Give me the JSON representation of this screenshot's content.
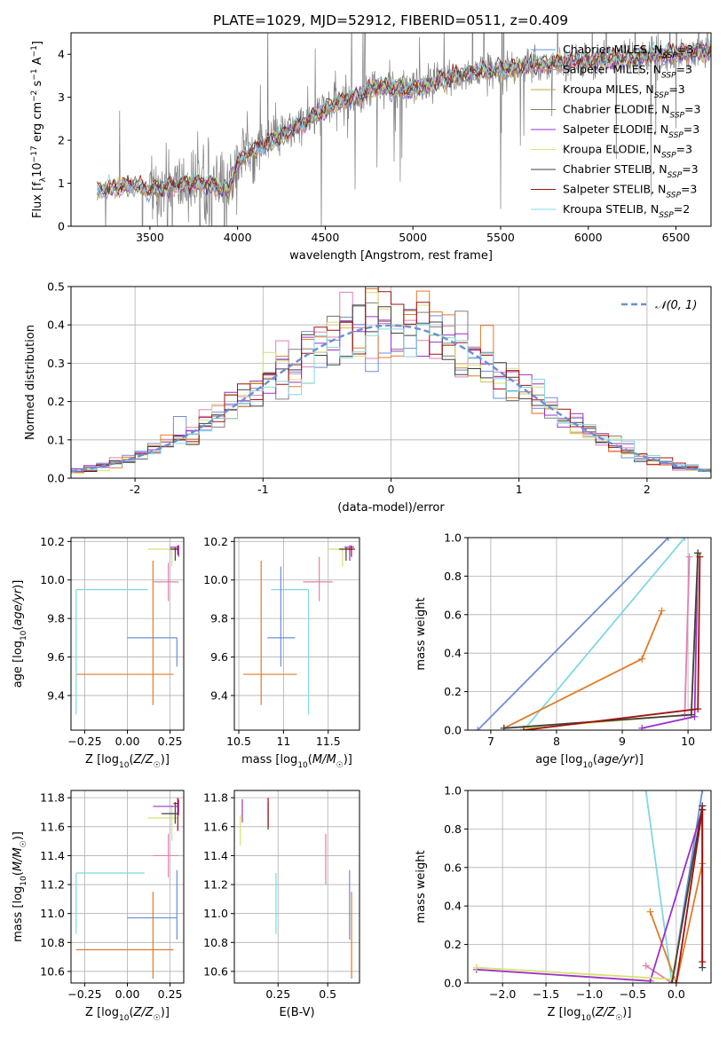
{
  "figure": {
    "title": "PLATE=1029, MJD=52912, FIBERID=0511, z=0.409"
  },
  "colors": {
    "blue": "#6a8fd8",
    "orange": "#e07b2a",
    "khaki": "#c8a04a",
    "gray": "#808080",
    "purple": "#9b30c8",
    "yellow": "#d8e070",
    "dark": "#404040",
    "red": "#a01010",
    "cyan": "#80d8e0",
    "pink": "#e080b0",
    "olive": "#6a8a50",
    "grid": "#b0b0b0"
  },
  "chart_data": [
    {
      "id": "spectrum",
      "type": "line",
      "xlabel": "wavelength [Angstrom, rest frame]",
      "ylabel": "Flux [f_λ10^-17 erg cm^-2 s^-1 A^-1]",
      "xlim": [
        3050,
        6700
      ],
      "ylim": [
        0,
        4.5
      ],
      "xticks": [
        3500,
        4000,
        4500,
        5000,
        5500,
        6000,
        6500
      ],
      "yticks": [
        0,
        1,
        2,
        3,
        4
      ],
      "grid": false,
      "legend_position": "top-right",
      "data_x_range": [
        3200,
        6700
      ],
      "model_continuum": {
        "x": [
          3200,
          3300,
          3400,
          3500,
          3650,
          3800,
          3950,
          4000,
          4100,
          4250,
          4400,
          4550,
          4700,
          4800,
          4900,
          5000,
          5200,
          5400,
          5600,
          5800,
          6000,
          6200,
          6400,
          6600,
          6700
        ],
        "y": [
          0.85,
          0.9,
          0.95,
          0.85,
          0.95,
          1.0,
          0.85,
          1.5,
          1.8,
          2.1,
          2.45,
          2.85,
          3.05,
          3.25,
          3.2,
          3.15,
          3.45,
          3.6,
          3.7,
          3.8,
          3.85,
          3.9,
          4.0,
          4.05,
          4.1
        ]
      },
      "legend": [
        {
          "label": "Chabrier MILES, N",
          "sub": "SSP",
          "suffix": "=3",
          "color": "blue"
        },
        {
          "label": "Salpeter MILES, N",
          "sub": "SSP",
          "suffix": "=3",
          "color": "pink"
        },
        {
          "label": "Kroupa MILES, N",
          "sub": "SSP",
          "suffix": "=3",
          "color": "khaki"
        },
        {
          "label": "Chabrier ELODIE, N",
          "sub": "SSP",
          "suffix": "=3",
          "color": "olive"
        },
        {
          "label": "Salpeter ELODIE, N",
          "sub": "SSP",
          "suffix": "=3",
          "color": "purple"
        },
        {
          "label": "Kroupa ELODIE, N",
          "sub": "SSP",
          "suffix": "=3",
          "color": "yellow"
        },
        {
          "label": "Chabrier STELIB, N",
          "sub": "SSP",
          "suffix": "=3",
          "color": "dark"
        },
        {
          "label": "Salpeter STELIB, N",
          "sub": "SSP",
          "suffix": "=3",
          "color": "red"
        },
        {
          "label": "Kroupa STELIB, N",
          "sub": "SSP",
          "suffix": "=2",
          "color": "cyan"
        }
      ]
    },
    {
      "id": "residuals",
      "type": "line",
      "xlabel": "(data-model)/error",
      "ylabel": "Normed distribution",
      "xlim": [
        -2.5,
        2.5
      ],
      "ylim": [
        0,
        0.5
      ],
      "xticks": [
        -2,
        -1,
        0,
        1,
        2
      ],
      "yticks": [
        0.0,
        0.1,
        0.2,
        0.3,
        0.4,
        0.5
      ],
      "grid": true,
      "legend_position": "top-right",
      "bin_width": 0.1,
      "reference_curve": {
        "label": "𝒩(0, 1)",
        "mean": 0,
        "sigma": 1,
        "color": "blue"
      },
      "histogram_series_colors": [
        "blue",
        "pink",
        "orange",
        "gray",
        "purple",
        "yellow",
        "dark",
        "red",
        "cyan"
      ]
    },
    {
      "id": "age-vs-Z",
      "type": "scatter",
      "xlabel": "Z [log10(Z/Z☉)]",
      "ylabel": "age  [log10(age/yr)]",
      "xlim": [
        -0.33,
        0.33
      ],
      "ylim": [
        9.22,
        10.22
      ],
      "xticks": [
        -0.25,
        0.0,
        0.25
      ],
      "xtick_labels": [
        "−0.25",
        "0.00",
        "0.25"
      ],
      "yticks": [
        9.4,
        9.6,
        9.8,
        10.0,
        10.2
      ],
      "grid": true,
      "errorbars": [
        {
          "color": "orange",
          "x": 0.15,
          "y": 9.51,
          "x_lo": -0.3,
          "x_hi": 0.27,
          "y_lo": 9.35,
          "y_hi": 10.1
        },
        {
          "color": "cyan",
          "x": -0.3,
          "y": 9.95,
          "x_lo": -0.3,
          "x_hi": 0.12,
          "y_lo": 9.3,
          "y_hi": 9.95
        },
        {
          "color": "blue",
          "x": 0.29,
          "y": 9.7,
          "x_lo": 0.0,
          "x_hi": 0.29,
          "y_lo": 9.55,
          "y_hi": 9.7
        },
        {
          "color": "pink",
          "x": 0.24,
          "y": 9.99,
          "x_lo": 0.15,
          "x_hi": 0.3,
          "y_lo": 9.89,
          "y_hi": 10.09
        },
        {
          "color": "yellow",
          "x": 0.26,
          "y": 10.16,
          "x_lo": 0.12,
          "x_hi": 0.3,
          "y_lo": 10.07,
          "y_hi": 10.17
        },
        {
          "color": "dark",
          "x": 0.28,
          "y": 10.16,
          "x_lo": 0.25,
          "x_hi": 0.3,
          "y_lo": 10.1,
          "y_hi": 10.17
        },
        {
          "color": "purple",
          "x": 0.3,
          "y": 10.17,
          "x_lo": 0.25,
          "x_hi": 0.3,
          "y_lo": 10.12,
          "y_hi": 10.18
        },
        {
          "color": "red",
          "x": 0.295,
          "y": 10.16,
          "x_lo": 0.27,
          "x_hi": 0.3,
          "y_lo": 10.13,
          "y_hi": 10.18
        }
      ]
    },
    {
      "id": "age-vs-mass",
      "type": "scatter",
      "xlabel": "mass [log10(M/M☉)]",
      "ylabel": "",
      "xlim": [
        10.45,
        11.85
      ],
      "ylim": [
        9.22,
        10.22
      ],
      "xticks": [
        10.5,
        11.0,
        11.5
      ],
      "yticks": [
        9.4,
        9.6,
        9.8,
        10.0,
        10.2
      ],
      "grid": true,
      "errorbars": [
        {
          "color": "orange",
          "x": 10.75,
          "y": 9.51,
          "x_lo": 10.55,
          "x_hi": 11.15,
          "y_lo": 9.35,
          "y_hi": 10.1
        },
        {
          "color": "cyan",
          "x": 11.28,
          "y": 9.95,
          "x_lo": 10.86,
          "x_hi": 11.28,
          "y_lo": 9.3,
          "y_hi": 9.95
        },
        {
          "color": "blue",
          "x": 10.97,
          "y": 9.7,
          "x_lo": 10.82,
          "x_hi": 11.13,
          "y_lo": 9.55,
          "y_hi": 10.07
        },
        {
          "color": "pink",
          "x": 11.4,
          "y": 9.99,
          "x_lo": 11.22,
          "x_hi": 11.55,
          "y_lo": 9.89,
          "y_hi": 10.12
        },
        {
          "color": "yellow",
          "x": 11.66,
          "y": 10.16,
          "x_lo": 11.5,
          "x_hi": 11.75,
          "y_lo": 10.07,
          "y_hi": 10.17
        },
        {
          "color": "dark",
          "x": 11.7,
          "y": 10.16,
          "x_lo": 11.62,
          "x_hi": 11.77,
          "y_lo": 10.1,
          "y_hi": 10.17
        },
        {
          "color": "purple",
          "x": 11.74,
          "y": 10.17,
          "x_lo": 11.68,
          "x_hi": 11.79,
          "y_lo": 10.1,
          "y_hi": 10.18
        },
        {
          "color": "red",
          "x": 11.76,
          "y": 10.16,
          "x_lo": 11.7,
          "x_hi": 11.8,
          "y_lo": 10.12,
          "y_hi": 10.18
        }
      ]
    },
    {
      "id": "weight-vs-age",
      "type": "line",
      "xlabel": "age  [log10(age/yr)]",
      "ylabel": "mass weight",
      "xlim": [
        6.65,
        10.35
      ],
      "ylim": [
        0,
        1.0
      ],
      "xticks": [
        7,
        8,
        9,
        10
      ],
      "yticks": [
        0.0,
        0.2,
        0.4,
        0.6,
        0.8,
        1.0
      ],
      "grid": true,
      "series": [
        {
          "color": "blue",
          "x": [
            6.8,
            9.7
          ],
          "y": [
            0.0,
            1.0
          ]
        },
        {
          "color": "cyan",
          "x": [
            7.5,
            9.95
          ],
          "y": [
            0.0,
            1.0
          ]
        },
        {
          "color": "orange",
          "x": [
            7.2,
            9.3,
            9.6
          ],
          "y": [
            0.01,
            0.37,
            0.62
          ]
        },
        {
          "color": "pink",
          "x": [
            9.95,
            10.02
          ],
          "y": [
            0.08,
            0.9
          ]
        },
        {
          "color": "purple",
          "x": [
            9.3,
            10.1,
            10.15
          ],
          "y": [
            0.01,
            0.07,
            0.92
          ]
        },
        {
          "color": "yellow",
          "x": [
            7.5,
            10.05,
            10.15
          ],
          "y": [
            0.01,
            0.08,
            0.91
          ]
        },
        {
          "color": "dark",
          "x": [
            7.2,
            10.05,
            10.15
          ],
          "y": [
            0.01,
            0.08,
            0.92
          ]
        },
        {
          "color": "red",
          "x": [
            7.5,
            10.15,
            10.18
          ],
          "y": [
            0.0,
            0.11,
            0.9
          ]
        }
      ]
    },
    {
      "id": "mass-vs-Z",
      "type": "scatter",
      "xlabel": "Z [log10(Z/Z☉)]",
      "ylabel": "mass [log10(M/M☉)]",
      "xlim": [
        -0.33,
        0.33
      ],
      "ylim": [
        10.52,
        11.85
      ],
      "xticks": [
        -0.25,
        0.0,
        0.25
      ],
      "xtick_labels": [
        "−0.25",
        "0.00",
        "0.25"
      ],
      "yticks": [
        10.6,
        10.8,
        11.0,
        11.2,
        11.4,
        11.6,
        11.8
      ],
      "grid": true,
      "errorbars": [
        {
          "color": "orange",
          "x": 0.15,
          "y": 10.75,
          "x_lo": -0.3,
          "x_hi": 0.27,
          "y_lo": 10.55,
          "y_hi": 11.15
        },
        {
          "color": "cyan",
          "x": -0.3,
          "y": 11.28,
          "x_lo": -0.3,
          "x_hi": 0.1,
          "y_lo": 10.86,
          "y_hi": 11.28
        },
        {
          "color": "blue",
          "x": 0.29,
          "y": 10.97,
          "x_lo": 0.0,
          "x_hi": 0.29,
          "y_lo": 10.82,
          "y_hi": 11.3
        },
        {
          "color": "pink",
          "x": 0.24,
          "y": 11.4,
          "x_lo": 0.15,
          "x_hi": 0.3,
          "y_lo": 11.25,
          "y_hi": 11.55
        },
        {
          "color": "yellow",
          "x": 0.26,
          "y": 11.66,
          "x_lo": 0.12,
          "x_hi": 0.3,
          "y_lo": 11.5,
          "y_hi": 11.75
        },
        {
          "color": "dark",
          "x": 0.28,
          "y": 11.69,
          "x_lo": 0.2,
          "x_hi": 0.3,
          "y_lo": 11.62,
          "y_hi": 11.77
        },
        {
          "color": "purple",
          "x": 0.3,
          "y": 11.74,
          "x_lo": 0.15,
          "x_hi": 0.3,
          "y_lo": 11.68,
          "y_hi": 11.79
        },
        {
          "color": "red",
          "x": 0.295,
          "y": 11.76,
          "x_lo": 0.27,
          "x_hi": 0.3,
          "y_lo": 11.57,
          "y_hi": 11.8
        }
      ]
    },
    {
      "id": "mass-vs-ebv",
      "type": "scatter",
      "xlabel": "E(B-V)",
      "ylabel": "",
      "xlim": [
        0.03,
        0.66
      ],
      "ylim": [
        10.52,
        11.85
      ],
      "xticks": [
        0.25,
        0.5
      ],
      "yticks": [
        10.6,
        10.8,
        11.0,
        11.2,
        11.4,
        11.6,
        11.8
      ],
      "grid": true,
      "errorbars": [
        {
          "color": "orange",
          "x": 0.62,
          "y": 10.75,
          "x_lo": 0.62,
          "x_hi": 0.62,
          "y_lo": 10.55,
          "y_hi": 11.15
        },
        {
          "color": "cyan",
          "x": 0.24,
          "y": 11.08,
          "x_lo": 0.24,
          "x_hi": 0.24,
          "y_lo": 10.86,
          "y_hi": 11.28
        },
        {
          "color": "blue",
          "x": 0.61,
          "y": 11.1,
          "x_lo": 0.61,
          "x_hi": 0.61,
          "y_lo": 10.82,
          "y_hi": 11.3
        },
        {
          "color": "pink",
          "x": 0.49,
          "y": 11.4,
          "x_lo": 0.49,
          "x_hi": 0.49,
          "y_lo": 11.2,
          "y_hi": 11.55
        },
        {
          "color": "yellow",
          "x": 0.06,
          "y": 11.58,
          "x_lo": 0.06,
          "x_hi": 0.06,
          "y_lo": 11.47,
          "y_hi": 11.68
        },
        {
          "color": "dark",
          "x": 0.2,
          "y": 11.7,
          "x_lo": 0.2,
          "x_hi": 0.2,
          "y_lo": 11.58,
          "y_hi": 11.77
        },
        {
          "color": "purple",
          "x": 0.07,
          "y": 11.74,
          "x_lo": 0.07,
          "x_hi": 0.07,
          "y_lo": 11.63,
          "y_hi": 11.79
        },
        {
          "color": "red",
          "x": 0.2,
          "y": 11.72,
          "x_lo": 0.2,
          "x_hi": 0.2,
          "y_lo": 11.6,
          "y_hi": 11.8
        }
      ]
    },
    {
      "id": "weight-vs-Z",
      "type": "line",
      "xlabel": "Z [log10(Z/Z☉)]",
      "ylabel": "mass weight",
      "xlim": [
        -2.4,
        0.4
      ],
      "ylim": [
        0,
        1.0
      ],
      "xticks": [
        -2.0,
        -1.5,
        -1.0,
        -0.5,
        0.0
      ],
      "xtick_labels": [
        "−2.0",
        "−1.5",
        "−1.0",
        "−0.5",
        "0.0"
      ],
      "yticks": [
        0.0,
        0.2,
        0.4,
        0.6,
        0.8,
        1.0
      ],
      "grid": true,
      "series": [
        {
          "color": "cyan",
          "x": [
            -0.35,
            -0.05
          ],
          "y": [
            1.0,
            0.0
          ]
        },
        {
          "color": "blue",
          "x": [
            -0.05,
            0.3
          ],
          "y": [
            0.0,
            1.0
          ]
        },
        {
          "color": "orange",
          "x": [
            -0.3,
            0.0,
            0.3,
            0.3
          ],
          "y": [
            0.37,
            0.0,
            0.62,
            0.9
          ]
        },
        {
          "color": "pink",
          "x": [
            -0.35,
            -0.05,
            0.3
          ],
          "y": [
            0.09,
            0.0,
            0.9
          ]
        },
        {
          "color": "purple",
          "x": [
            -2.3,
            -0.3,
            0.3,
            0.3
          ],
          "y": [
            0.07,
            0.01,
            0.9,
            0.92
          ]
        },
        {
          "color": "yellow",
          "x": [
            -2.3,
            -0.05,
            0.3,
            0.3
          ],
          "y": [
            0.08,
            0.02,
            0.88,
            0.92
          ]
        },
        {
          "color": "dark",
          "x": [
            -0.05,
            0.3,
            0.3
          ],
          "y": [
            0.0,
            0.92,
            0.08
          ]
        },
        {
          "color": "red",
          "x": [
            0.0,
            0.3,
            0.3
          ],
          "y": [
            0.0,
            0.9,
            0.11
          ]
        }
      ]
    }
  ]
}
